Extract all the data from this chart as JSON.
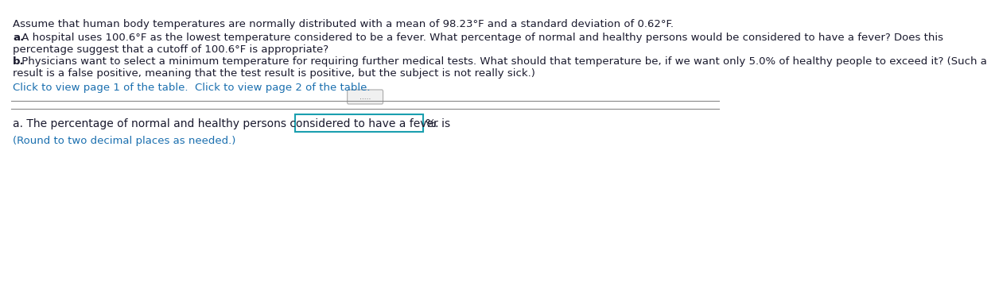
{
  "background_color": "#ffffff",
  "title_line": "Assume that human body temperatures are normally distributed with a mean of 98.23°F and a standard deviation of 0.62°F.",
  "part_a_bold": "a.",
  "part_a_text": " A hospital uses 100.6°F as the lowest temperature considered to be a fever. What percentage of normal and healthy persons would be considered to have a fever? Does this",
  "part_a_line2": "percentage suggest that a cutoff of 100.6°F is appropriate?",
  "part_b_bold": "b.",
  "part_b_text": " Physicians want to select a minimum temperature for requiring further medical tests. What should that temperature be, if we want only 5.0% of healthy people to exceed it? (Such a",
  "part_b_line2": "result is a false positive, meaning that the test result is positive, but the subject is not really sick.)",
  "link_text": "Click to view page 1 of the table.  Click to view page 2 of the table.",
  "dots": ".....",
  "answer_label": "a. The percentage of normal and healthy persons considered to have a fever is",
  "answer_suffix": "%.",
  "round_note": "(Round to two decimal places as needed.)",
  "text_color": "#1a1a2e",
  "link_color": "#1a6faf",
  "input_box_color": "#1a9faf",
  "font_size_main": 9.5,
  "font_size_answer": 10,
  "separator_color": "#888888"
}
